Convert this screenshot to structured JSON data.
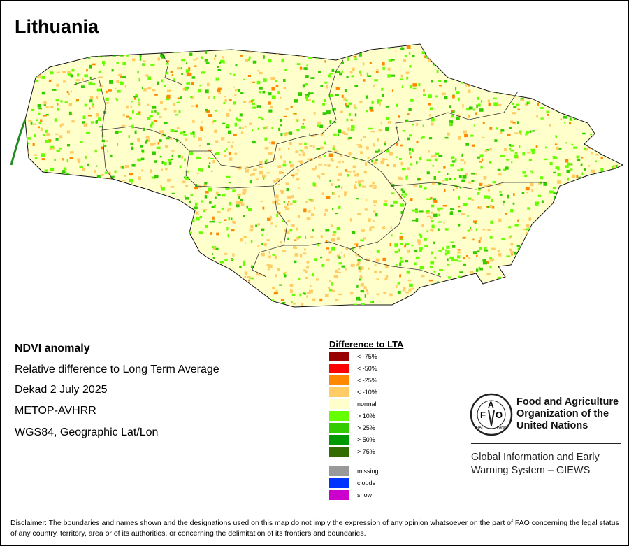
{
  "title": "Lithuania",
  "info": {
    "product": "NDVI anomaly",
    "description": "Relative difference to Long Term Average",
    "period": "Dekad 2 July 2025",
    "sensor": "METOP-AVHRR",
    "projection": "WGS84, Geographic Lat/Lon"
  },
  "legend": {
    "title": "Difference to LTA",
    "items": [
      {
        "label": "< -75%",
        "color": "#990000"
      },
      {
        "label": "< -50%",
        "color": "#ff0000"
      },
      {
        "label": "< -25%",
        "color": "#ff8800"
      },
      {
        "label": "< -10%",
        "color": "#ffcc66"
      },
      {
        "label": "normal",
        "color": "#ffffcc"
      },
      {
        "label": "> 10%",
        "color": "#66ff00"
      },
      {
        "label": "> 25%",
        "color": "#33cc00"
      },
      {
        "label": "> 50%",
        "color": "#009900"
      },
      {
        "label": "> 75%",
        "color": "#336d00"
      }
    ],
    "extra": [
      {
        "label": "missing",
        "color": "#999999"
      },
      {
        "label": "clouds",
        "color": "#0033ff"
      },
      {
        "label": "snow",
        "color": "#cc00cc"
      }
    ]
  },
  "fao": {
    "name_lines": [
      "Food and Agriculture",
      "Organization of the",
      "United Nations"
    ],
    "logo_text": "FAO FIAT PANIS",
    "giews_lines": [
      "Global Information and Early",
      "Warning System – GIEWS"
    ]
  },
  "disclaimer": "Disclaimer: The boundaries and names shown and the designations used on this map do not imply the expression of any opinion whatsoever on the part of FAO concerning the legal status of any country, territory, area or of its authorities, or concerning the delimitation of its frontiers and boundaries."
}
